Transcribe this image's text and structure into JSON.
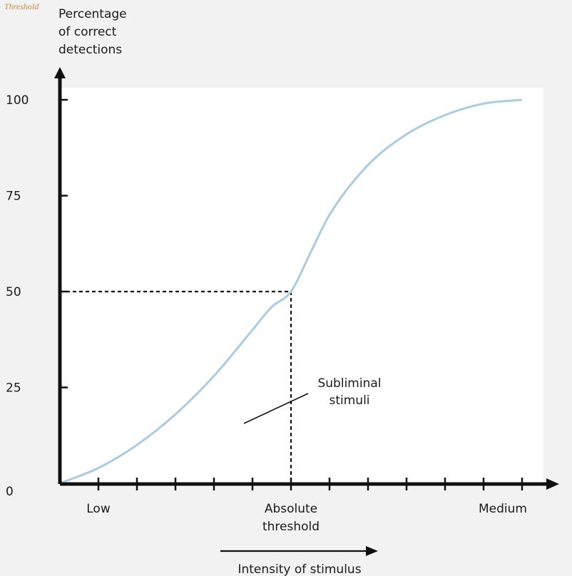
{
  "caption_fragment": "Threshold",
  "chart_data": {
    "type": "line",
    "ylabel": [
      "Percentage",
      "of correct",
      "detections"
    ],
    "xlabel": "Intensity of stimulus",
    "ylim": [
      0,
      100
    ],
    "yticks": [
      0,
      25,
      50,
      75,
      100
    ],
    "xlim": [
      0,
      12
    ],
    "x_tick_labels": [
      {
        "x": 1,
        "lines": [
          "Low"
        ]
      },
      {
        "x": 6,
        "lines": [
          "Absolute",
          "threshold"
        ]
      },
      {
        "x": 11.5,
        "lines": [
          "Medium"
        ]
      }
    ],
    "x_tick_count": 12,
    "series": [
      {
        "color": "#a9cbe3",
        "x": [
          0,
          1,
          2,
          3,
          4,
          5,
          5.5,
          6,
          6.5,
          7,
          8,
          9,
          10,
          11,
          12
        ],
        "y": [
          0,
          4,
          10,
          18,
          28,
          40,
          46,
          50,
          60,
          70,
          83,
          91,
          96,
          99,
          100
        ]
      }
    ],
    "threshold": {
      "x": 6,
      "y": 50
    },
    "annotation": {
      "lines": [
        "Subliminal",
        "stimuli"
      ],
      "pointer_to": {
        "x": 5,
        "y": 20
      }
    },
    "grid": false,
    "legend": "none"
  }
}
